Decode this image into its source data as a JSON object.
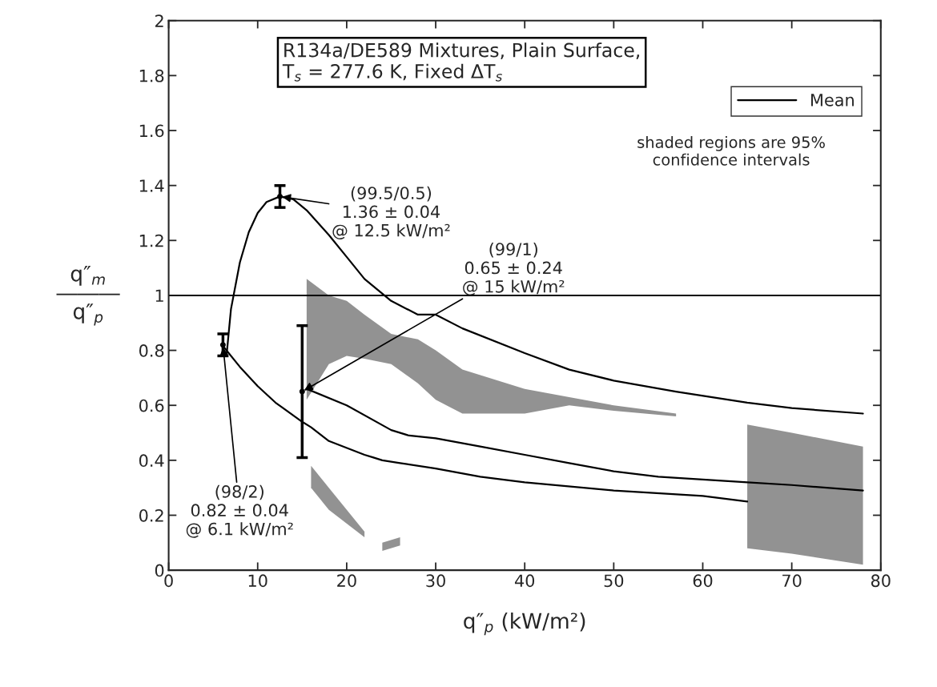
{
  "chart_data": {
    "type": "line",
    "title": "R134a/DE589 Mixtures, Plain Surface,\nT$_{s}$ = 277.6 K, Fixed ΔT$_{s}$",
    "xlabel": "q″$_{p}$ (kW/m²)",
    "ylabel": "q″$_{m}$\n―――\nq″$_{p}$",
    "xlim": [
      0,
      80
    ],
    "ylim": [
      0,
      2
    ],
    "xticks": [
      0,
      10,
      20,
      30,
      40,
      50,
      60,
      70,
      80
    ],
    "yticks": [
      0,
      0.2,
      0.4,
      0.6,
      0.8,
      1,
      1.2,
      1.4,
      1.6,
      1.8,
      2
    ],
    "grid": false,
    "legend": "top right",
    "series": [
      {
        "name": "Mean",
        "color": "#000000",
        "x": [
          6.5,
          7,
          8,
          9,
          10,
          11,
          12.5,
          14,
          15.5,
          18,
          20,
          22,
          25,
          28,
          30,
          33,
          40,
          45,
          50,
          57,
          65,
          70,
          78
        ],
        "values": [
          0.78,
          0.95,
          1.12,
          1.23,
          1.3,
          1.34,
          1.36,
          1.35,
          1.31,
          1.22,
          1.14,
          1.06,
          0.98,
          0.93,
          0.93,
          0.88,
          0.79,
          0.73,
          0.69,
          0.65,
          0.61,
          0.59,
          0.57
        ],
        "lower": [
          null,
          null,
          null,
          null,
          null,
          null,
          null,
          null,
          0.62,
          0.75,
          0.78,
          0.77,
          0.75,
          0.68,
          0.62,
          0.57,
          0.57,
          0.6,
          0.58,
          0.56,
          null,
          null,
          null
        ],
        "upper": [
          null,
          null,
          null,
          null,
          null,
          null,
          null,
          null,
          1.06,
          1.0,
          0.98,
          0.93,
          0.86,
          0.84,
          0.8,
          0.73,
          0.66,
          0.63,
          0.6,
          0.57,
          null,
          null,
          null
        ]
      },
      {
        "color": "#000000",
        "x": [
          15.5,
          20,
          25,
          27,
          30,
          35,
          40,
          45,
          50,
          55,
          60,
          65,
          70,
          78
        ],
        "values": [
          0.66,
          0.6,
          0.51,
          0.49,
          0.48,
          0.45,
          0.42,
          0.39,
          0.36,
          0.34,
          0.33,
          0.32,
          0.31,
          0.29
        ],
        "lower": [
          null,
          null,
          null,
          null,
          null,
          null,
          null,
          null,
          null,
          null,
          null,
          0.08,
          0.06,
          0.02
        ],
        "upper": [
          null,
          null,
          null,
          null,
          null,
          null,
          null,
          null,
          null,
          null,
          null,
          0.53,
          0.5,
          0.45
        ]
      },
      {
        "color": "#000000",
        "x": [
          6,
          8,
          10,
          12,
          15,
          16,
          18,
          22,
          23,
          24,
          26,
          30,
          35,
          40,
          50,
          60,
          65
        ],
        "values": [
          0.82,
          0.74,
          0.67,
          0.61,
          0.54,
          0.52,
          0.47,
          0.42,
          0.41,
          0.4,
          0.39,
          0.37,
          0.34,
          0.32,
          0.29,
          0.27,
          0.25
        ],
        "lower": [
          null,
          null,
          null,
          null,
          null,
          0.3,
          0.22,
          0.12,
          null,
          0.07,
          0.09,
          null,
          null,
          null,
          null,
          null,
          null
        ],
        "upper": [
          null,
          null,
          null,
          null,
          null,
          0.38,
          0.3,
          0.14,
          null,
          0.1,
          0.12,
          null,
          null,
          null,
          null,
          null,
          null
        ]
      },
      {
        "type": "scatter",
        "color": "#000000",
        "x": [
          6.1,
          12.5,
          15
        ],
        "values": [
          0.82,
          1.36,
          0.65
        ],
        "errors": [
          0.04,
          0.04,
          0.24
        ],
        "marker": "circle"
      }
    ],
    "ref_lines": [
      {
        "axis": "y",
        "value": 1,
        "color": "#000000"
      }
    ],
    "annotations": [
      {
        "text": "(99.5/0.5)\n1.36 ± 0.04\n@ 12.5 kW/m²",
        "x": 12.5,
        "y": 1.36
      },
      {
        "text": "(99/1)\n0.65 ± 0.24\n@ 15 kW/m²",
        "x": 15,
        "y": 0.65
      },
      {
        "text": "(98/2)\n0.82 ± 0.04\n@ 6.1 kW/m²",
        "x": 6.1,
        "y": 0.82
      },
      "shaded regions are 95%\nconfidence intervals"
    ]
  }
}
